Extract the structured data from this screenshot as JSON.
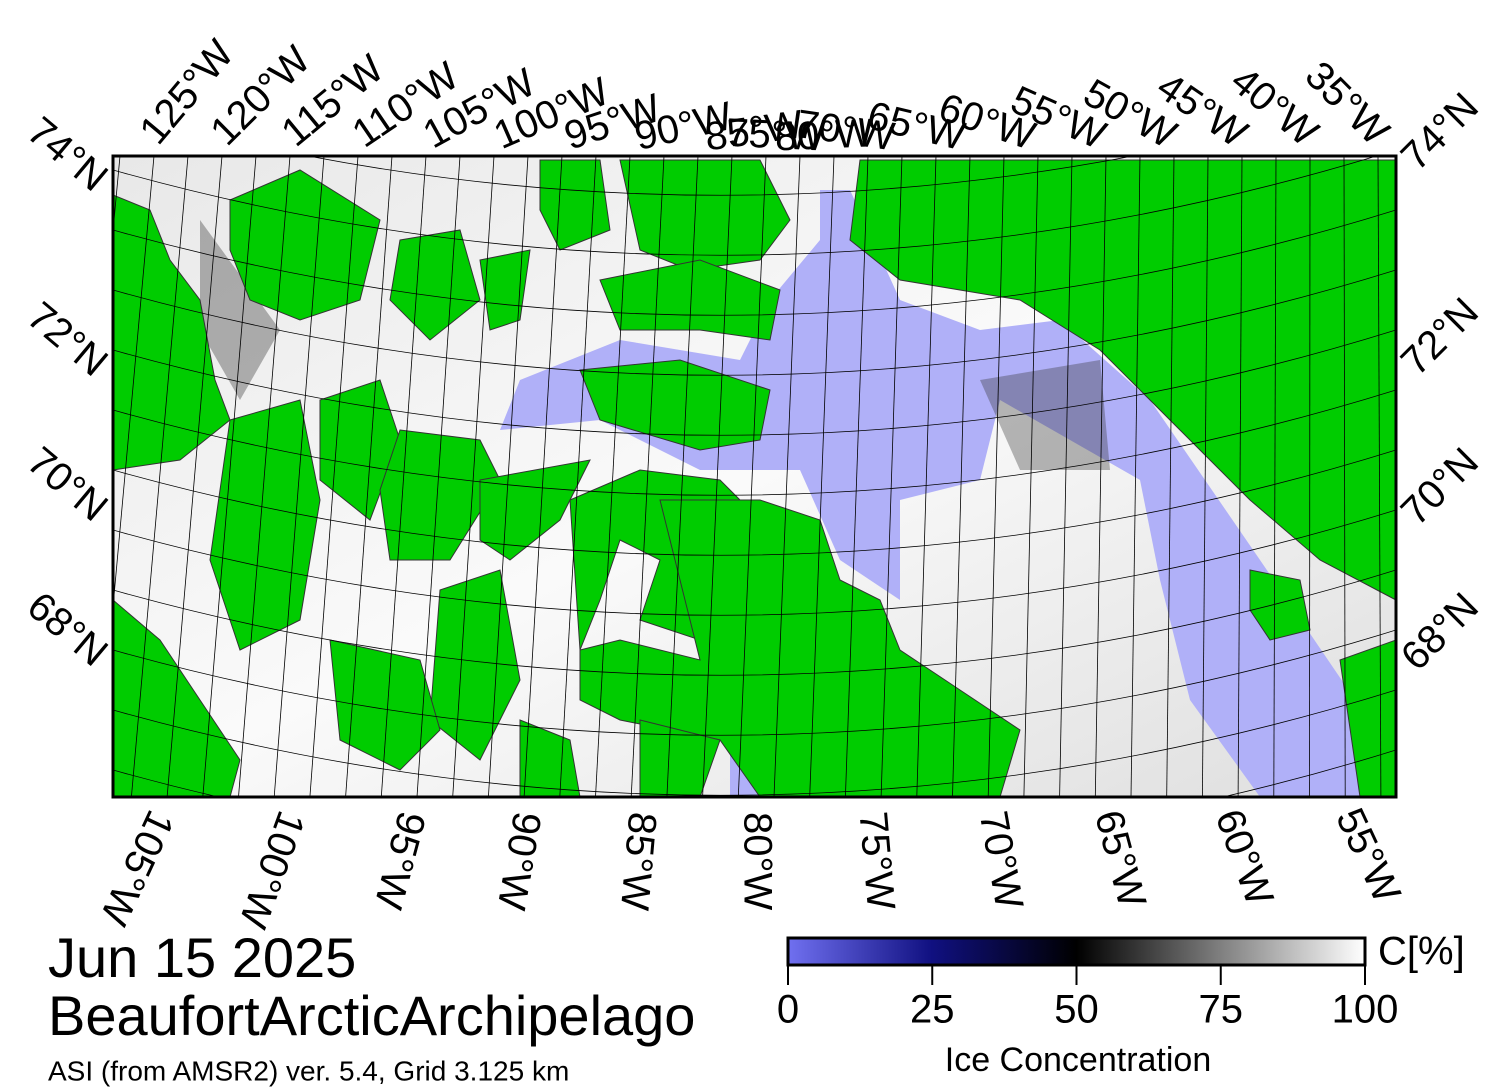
{
  "title": "Jun 15 2025",
  "region": "BeaufortArcticArchipelago",
  "source": "ASI (from AMSR2) ver. 5.4,  Grid 3.125 km",
  "map": {
    "top_labels": [
      "125°W",
      "120°W",
      "115°W",
      "110°W",
      "105°W",
      "100°W",
      "95°W",
      "90°W",
      "85°W",
      "80°W",
      "75°W",
      "70°W",
      "65°W",
      "60°W",
      "55°W",
      "50°W",
      "45°W",
      "40°W",
      "35°W"
    ],
    "bottom_labels": [
      "105°W",
      "100°W",
      "95°W",
      "90°W",
      "85°W",
      "80°W",
      "75°W",
      "70°W",
      "65°W",
      "60°W",
      "55°W"
    ],
    "left_labels": [
      "74°N",
      "72°N",
      "70°N",
      "68°N"
    ],
    "right_labels": [
      "74°N",
      "72°N",
      "70°N",
      "68°N"
    ]
  },
  "colorbar": {
    "label": "Ice Concentration",
    "unit": "C[%]",
    "range": [
      0,
      100
    ],
    "ticks": [
      0,
      25,
      50,
      75,
      100
    ]
  }
}
